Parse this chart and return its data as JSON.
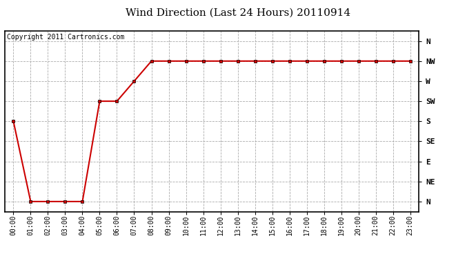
{
  "title": "Wind Direction (Last 24 Hours) 20110914",
  "copyright_text": "Copyright 2011 Cartronics.com",
  "x_labels": [
    "00:00",
    "01:00",
    "02:00",
    "03:00",
    "04:00",
    "05:00",
    "06:00",
    "07:00",
    "08:00",
    "09:00",
    "10:00",
    "11:00",
    "12:00",
    "13:00",
    "14:00",
    "15:00",
    "16:00",
    "17:00",
    "18:00",
    "19:00",
    "20:00",
    "21:00",
    "22:00",
    "23:00"
  ],
  "y_labels": [
    "N",
    "NE",
    "E",
    "SE",
    "S",
    "SW",
    "W",
    "NW",
    "N"
  ],
  "y_values": [
    0,
    1,
    2,
    3,
    4,
    5,
    6,
    7,
    8
  ],
  "data_values": [
    4,
    0,
    0,
    0,
    0,
    5,
    5,
    6,
    7,
    7,
    7,
    7,
    7,
    7,
    7,
    7,
    7,
    7,
    7,
    7,
    7,
    7,
    7,
    7
  ],
  "line_color": "#cc0000",
  "marker": "s",
  "marker_size": 3,
  "bg_color": "#ffffff",
  "plot_bg_color": "#ffffff",
  "grid_color": "#aaaaaa",
  "title_fontsize": 11,
  "copyright_fontsize": 7,
  "tick_fontsize": 7,
  "ytick_fontsize": 8
}
